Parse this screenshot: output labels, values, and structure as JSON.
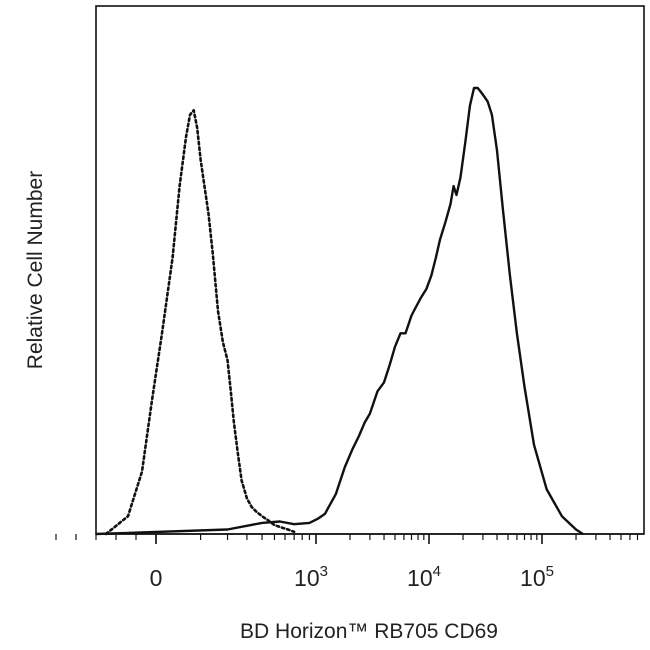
{
  "chart_data": {
    "type": "area",
    "xlabel": "BD Horizon™ RB705 CD69",
    "ylabel": "Relative Cell Number",
    "x_scale": "biexponential",
    "xlim": [
      -500,
      250000
    ],
    "ylim": [
      0,
      1
    ],
    "grid": false,
    "legend": "none",
    "x_ticks": [
      {
        "value": 0,
        "base": "0",
        "exponent": ""
      },
      {
        "value": 1000,
        "base": "10",
        "exponent": "3"
      },
      {
        "value": 10000,
        "base": "10",
        "exponent": "4"
      },
      {
        "value": 100000,
        "base": "10",
        "exponent": "5"
      }
    ],
    "series": [
      {
        "style": "dotted",
        "color": "#111111",
        "x": [
          -250,
          -140,
          -70,
          -20,
          10,
          30,
          45,
          60,
          70,
          80,
          90,
          100,
          110,
          125,
          140,
          160,
          180,
          200,
          215,
          230,
          250,
          270,
          300,
          330,
          360,
          400,
          450,
          500,
          560,
          630,
          700
        ],
        "y": [
          0.0,
          0.04,
          0.14,
          0.3,
          0.45,
          0.62,
          0.78,
          0.89,
          0.94,
          0.95,
          0.91,
          0.84,
          0.79,
          0.72,
          0.63,
          0.5,
          0.43,
          0.39,
          0.32,
          0.25,
          0.18,
          0.12,
          0.08,
          0.06,
          0.05,
          0.04,
          0.03,
          0.02,
          0.015,
          0.01,
          0.005
        ]
      },
      {
        "style": "solid",
        "color": "#111111",
        "x": [
          -300,
          200,
          400,
          550,
          700,
          900,
          1050,
          1200,
          1500,
          1800,
          2100,
          2400,
          2700,
          3000,
          3500,
          4000,
          4500,
          5000,
          5600,
          6200,
          7000,
          7700,
          8500,
          9500,
          10500,
          11500,
          12500,
          14000,
          15500,
          16500,
          17500,
          19000,
          21000,
          23000,
          25000,
          27000,
          29000,
          31000,
          33000,
          36000,
          40000,
          45000,
          52000,
          60000,
          70000,
          85000,
          110000,
          150000,
          200000,
          230000
        ],
        "y": [
          0.0,
          0.01,
          0.025,
          0.028,
          0.022,
          0.025,
          0.035,
          0.045,
          0.09,
          0.15,
          0.19,
          0.22,
          0.25,
          0.27,
          0.32,
          0.34,
          0.38,
          0.42,
          0.45,
          0.45,
          0.49,
          0.51,
          0.53,
          0.55,
          0.58,
          0.62,
          0.66,
          0.7,
          0.74,
          0.78,
          0.76,
          0.8,
          0.88,
          0.96,
          1.0,
          1.0,
          0.99,
          0.98,
          0.97,
          0.94,
          0.86,
          0.73,
          0.58,
          0.45,
          0.33,
          0.2,
          0.1,
          0.04,
          0.01,
          0.0
        ]
      }
    ]
  }
}
